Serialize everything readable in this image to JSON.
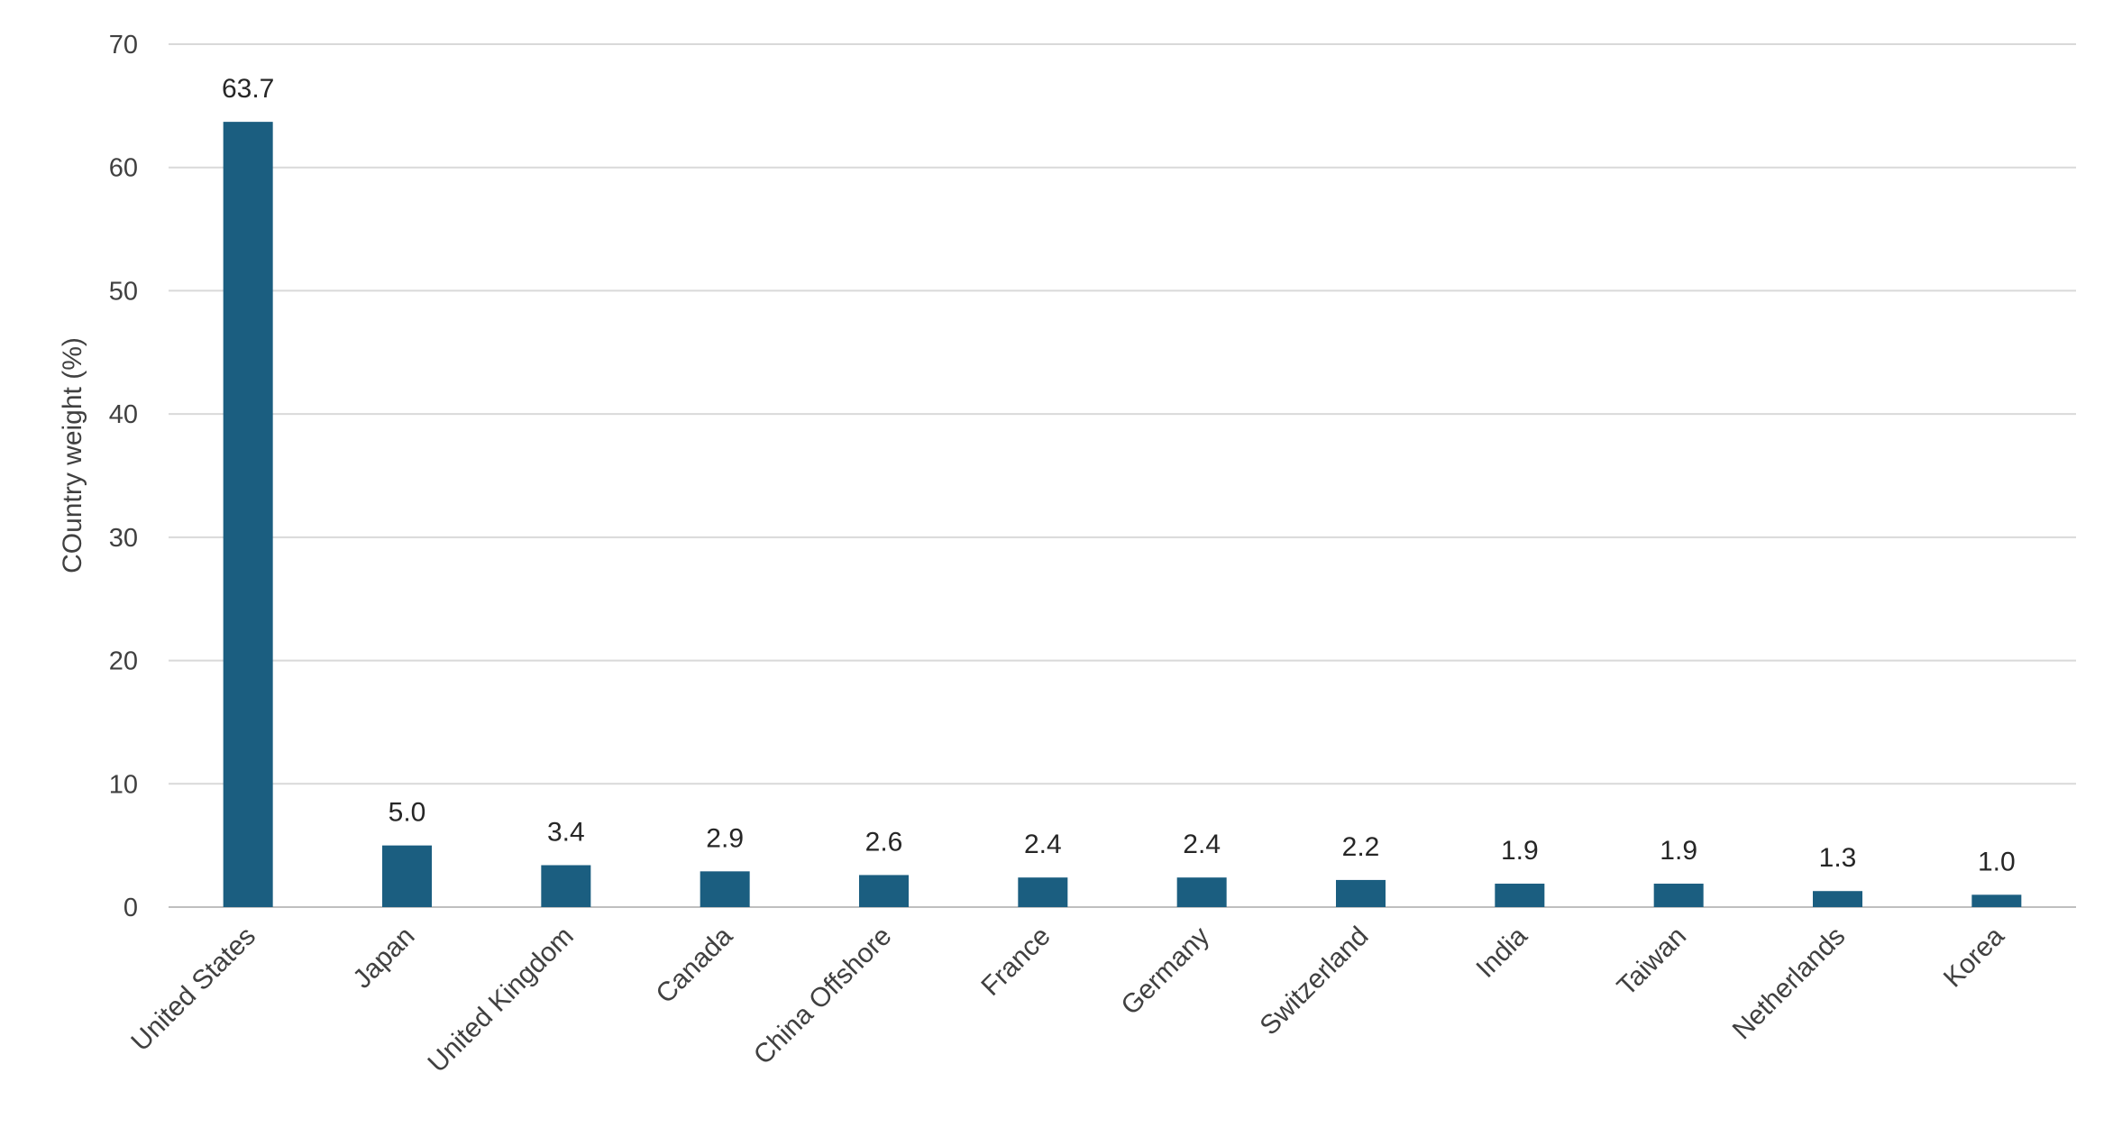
{
  "chart_data": {
    "type": "bar",
    "categories": [
      "United States",
      "Japan",
      "United Kingdom",
      "Canada",
      "China Offshore",
      "France",
      "Germany",
      "Switzerland",
      "India",
      "Taiwan",
      "Netherlands",
      "Korea"
    ],
    "values": [
      63.7,
      5.0,
      3.4,
      2.9,
      2.6,
      2.4,
      2.4,
      2.2,
      1.9,
      1.9,
      1.3,
      1.0
    ],
    "data_labels": [
      "63.7",
      "5.0",
      "3.4",
      "2.9",
      "2.6",
      "2.4",
      "2.4",
      "2.2",
      "1.9",
      "1.9",
      "1.3",
      "1.0"
    ],
    "ylabel": "COuntry weight (%)",
    "ylim": [
      0,
      70
    ],
    "yticks": [
      0,
      10,
      20,
      30,
      40,
      50,
      60,
      70
    ],
    "grid": true,
    "legend": "none",
    "bar_color": "#1b5e80"
  }
}
